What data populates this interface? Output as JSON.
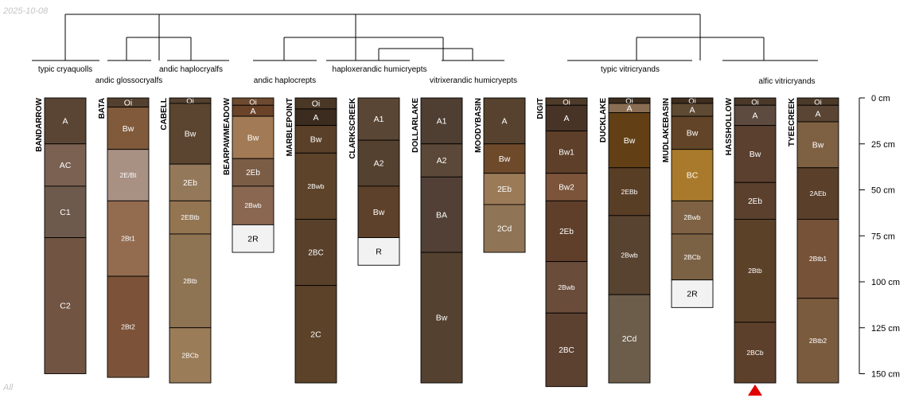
{
  "header": {
    "date": "2025-10-08"
  },
  "footer": {
    "label": "All"
  },
  "depth_axis": {
    "ticks": [
      "0 cm",
      "25 cm",
      "50 cm",
      "75 cm",
      "100 cm",
      "125 cm",
      "150 cm"
    ],
    "values": [
      0,
      25,
      50,
      75,
      100,
      125,
      150
    ]
  },
  "groups": [
    {
      "label": "typic cryaquolls"
    },
    {
      "label": "andic glossocryalfs"
    },
    {
      "label": "andic haplocryalfs"
    },
    {
      "label": "andic haplocrepts"
    },
    {
      "label": "haploxerandic humicryepts"
    },
    {
      "label": "vitrixerandic humicryepts"
    },
    {
      "label": "typic vitricryands"
    },
    {
      "label": "alfic vitricryands"
    }
  ],
  "profiles": [
    {
      "name": "BANDARROW",
      "horizons": [
        {
          "name": "A",
          "top": 0,
          "bottom": 25,
          "color": "#5a4535",
          "text": "#ffffff"
        },
        {
          "name": "AC",
          "top": 25,
          "bottom": 48,
          "color": "#7a6152",
          "text": "#ffffff"
        },
        {
          "name": "C1",
          "top": 48,
          "bottom": 76,
          "color": "#6e5a4c",
          "text": "#ffffff"
        },
        {
          "name": "C2",
          "top": 76,
          "bottom": 150,
          "color": "#725443",
          "text": "#ffffff"
        }
      ]
    },
    {
      "name": "BATA",
      "horizons": [
        {
          "name": "Oi",
          "top": 0,
          "bottom": 5,
          "color": "#54402f",
          "text": "#ffffff"
        },
        {
          "name": "Bw",
          "top": 5,
          "bottom": 28,
          "color": "#805a3b",
          "text": "#ffffff"
        },
        {
          "name": "2E/Bt",
          "top": 28,
          "bottom": 56,
          "color": "#a89083",
          "text": "#ffffff"
        },
        {
          "name": "2Bt1",
          "top": 56,
          "bottom": 97,
          "color": "#936c50",
          "text": "#ffffff"
        },
        {
          "name": "2Bt2",
          "top": 97,
          "bottom": 152,
          "color": "#7c5338",
          "text": "#ffffff"
        }
      ]
    },
    {
      "name": "CABELL",
      "horizons": [
        {
          "name": "Oi",
          "top": 0,
          "bottom": 3,
          "color": "#54402f",
          "text": "#ffffff"
        },
        {
          "name": "Bw",
          "top": 3,
          "bottom": 36,
          "color": "#5b4530",
          "text": "#ffffff"
        },
        {
          "name": "2Eb",
          "top": 36,
          "bottom": 56,
          "color": "#94785a",
          "text": "#ffffff"
        },
        {
          "name": "2EBtb",
          "top": 56,
          "bottom": 74,
          "color": "#937552",
          "text": "#ffffff"
        },
        {
          "name": "2Btb",
          "top": 74,
          "bottom": 125,
          "color": "#8f7454",
          "text": "#ffffff"
        },
        {
          "name": "2BCb",
          "top": 125,
          "bottom": 155,
          "color": "#9a7c58",
          "text": "#ffffff"
        }
      ]
    },
    {
      "name": "BEARPAWMEADOW",
      "horizons": [
        {
          "name": "Oi",
          "top": 0,
          "bottom": 4,
          "color": "#6e4a30",
          "text": "#ffffff"
        },
        {
          "name": "A",
          "top": 4,
          "bottom": 10,
          "color": "#6a4329",
          "text": "#ffffff"
        },
        {
          "name": "Bw",
          "top": 10,
          "bottom": 33,
          "color": "#a27a55",
          "text": "#ffffff"
        },
        {
          "name": "2Eb",
          "top": 33,
          "bottom": 48,
          "color": "#7b5d46",
          "text": "#ffffff"
        },
        {
          "name": "2Bwb",
          "top": 48,
          "bottom": 69,
          "color": "#8a6751",
          "text": "#ffffff"
        },
        {
          "name": "2R",
          "top": 69,
          "bottom": 84,
          "color": "#f2f2f2",
          "text": "#000000"
        }
      ]
    },
    {
      "name": "MARBLEPOINT",
      "horizons": [
        {
          "name": "Oi",
          "top": 0,
          "bottom": 6,
          "color": "#4a3826",
          "text": "#ffffff"
        },
        {
          "name": "A",
          "top": 6,
          "bottom": 15,
          "color": "#3b2c1f",
          "text": "#ffffff"
        },
        {
          "name": "Bw",
          "top": 15,
          "bottom": 30,
          "color": "#5a4028",
          "text": "#ffffff"
        },
        {
          "name": "2Bwb",
          "top": 30,
          "bottom": 66,
          "color": "#5c4329",
          "text": "#ffffff"
        },
        {
          "name": "2BC",
          "top": 66,
          "bottom": 102,
          "color": "#58402b",
          "text": "#ffffff"
        },
        {
          "name": "2C",
          "top": 102,
          "bottom": 155,
          "color": "#5b4228",
          "text": "#ffffff"
        }
      ]
    },
    {
      "name": "CLARKSCREEK",
      "horizons": [
        {
          "name": "A1",
          "top": 0,
          "bottom": 23,
          "color": "#5a4634",
          "text": "#ffffff"
        },
        {
          "name": "A2",
          "top": 23,
          "bottom": 48,
          "color": "#55412f",
          "text": "#ffffff"
        },
        {
          "name": "Bw",
          "top": 48,
          "bottom": 76,
          "color": "#5e412a",
          "text": "#ffffff"
        },
        {
          "name": "R",
          "top": 76,
          "bottom": 91,
          "color": "#f2f2f2",
          "text": "#000000"
        }
      ]
    },
    {
      "name": "DOLLARLAKE",
      "horizons": [
        {
          "name": "A1",
          "top": 0,
          "bottom": 25,
          "color": "#4f3e32",
          "text": "#ffffff"
        },
        {
          "name": "A2",
          "top": 25,
          "bottom": 43,
          "color": "#5b4838",
          "text": "#ffffff"
        },
        {
          "name": "BA",
          "top": 43,
          "bottom": 84,
          "color": "#524036",
          "text": "#ffffff"
        },
        {
          "name": "Bw",
          "top": 84,
          "bottom": 155,
          "color": "#54412f",
          "text": "#ffffff"
        }
      ]
    },
    {
      "name": "MOODYBASIN",
      "horizons": [
        {
          "name": "A",
          "top": 0,
          "bottom": 25,
          "color": "#56422e",
          "text": "#ffffff"
        },
        {
          "name": "Bw",
          "top": 25,
          "bottom": 41,
          "color": "#6e4a2b",
          "text": "#ffffff"
        },
        {
          "name": "2Eb",
          "top": 41,
          "bottom": 58,
          "color": "#9b7a58",
          "text": "#ffffff"
        },
        {
          "name": "2Cd",
          "top": 58,
          "bottom": 84,
          "color": "#907456",
          "text": "#ffffff"
        }
      ]
    },
    {
      "name": "DIGIT",
      "horizons": [
        {
          "name": "Oi",
          "top": 0,
          "bottom": 4,
          "color": "#4e3b29",
          "text": "#ffffff"
        },
        {
          "name": "A",
          "top": 4,
          "bottom": 18,
          "color": "#473427",
          "text": "#ffffff"
        },
        {
          "name": "Bw1",
          "top": 18,
          "bottom": 41,
          "color": "#5d3f2a",
          "text": "#ffffff"
        },
        {
          "name": "Bw2",
          "top": 41,
          "bottom": 56,
          "color": "#7b543a",
          "text": "#ffffff"
        },
        {
          "name": "2Eb",
          "top": 56,
          "bottom": 89,
          "color": "#5f3f2a",
          "text": "#ffffff"
        },
        {
          "name": "2Bwb",
          "top": 89,
          "bottom": 117,
          "color": "#694c39",
          "text": "#ffffff"
        },
        {
          "name": "2BC",
          "top": 117,
          "bottom": 157,
          "color": "#5c4030",
          "text": "#ffffff"
        }
      ]
    },
    {
      "name": "DUCKLAKE",
      "horizons": [
        {
          "name": "Oi",
          "top": 0,
          "bottom": 3,
          "color": "#3c2c1e",
          "text": "#ffffff"
        },
        {
          "name": "A",
          "top": 3,
          "bottom": 8,
          "color": "#8a6e53",
          "text": "#ffffff"
        },
        {
          "name": "Bw",
          "top": 8,
          "bottom": 38,
          "color": "#623f14",
          "text": "#ffffff"
        },
        {
          "name": "2EBb",
          "top": 38,
          "bottom": 64,
          "color": "#593e26",
          "text": "#ffffff"
        },
        {
          "name": "2Bwb",
          "top": 64,
          "bottom": 107,
          "color": "#584330",
          "text": "#ffffff"
        },
        {
          "name": "2Cd",
          "top": 107,
          "bottom": 155,
          "color": "#6b5d4a",
          "text": "#ffffff"
        }
      ]
    },
    {
      "name": "MUDLAKEBASIN",
      "horizons": [
        {
          "name": "Oi",
          "top": 0,
          "bottom": 3,
          "color": "#3f2d1e",
          "text": "#ffffff"
        },
        {
          "name": "A",
          "top": 3,
          "bottom": 10,
          "color": "#5f4a33",
          "text": "#ffffff"
        },
        {
          "name": "Bw",
          "top": 10,
          "bottom": 28,
          "color": "#624528",
          "text": "#ffffff"
        },
        {
          "name": "BC",
          "top": 28,
          "bottom": 56,
          "color": "#aa7a2c",
          "text": "#ffffff"
        },
        {
          "name": "2Bwb",
          "top": 56,
          "bottom": 74,
          "color": "#7e6243",
          "text": "#ffffff"
        },
        {
          "name": "2BCb",
          "top": 74,
          "bottom": 99,
          "color": "#7c6244",
          "text": "#ffffff"
        },
        {
          "name": "2R",
          "top": 99,
          "bottom": 114,
          "color": "#f2f2f2",
          "text": "#000000"
        }
      ]
    },
    {
      "name": "HASSHOLLOW",
      "horizons": [
        {
          "name": "Oi",
          "top": 0,
          "bottom": 4,
          "color": "#4a3929",
          "text": "#ffffff"
        },
        {
          "name": "A",
          "top": 4,
          "bottom": 15,
          "color": "#5e4b3f",
          "text": "#ffffff"
        },
        {
          "name": "Bw",
          "top": 15,
          "bottom": 46,
          "color": "#5b4030",
          "text": "#ffffff"
        },
        {
          "name": "2Eb",
          "top": 46,
          "bottom": 66,
          "color": "#5b402d",
          "text": "#ffffff"
        },
        {
          "name": "2Btb",
          "top": 66,
          "bottom": 122,
          "color": "#5c4129",
          "text": "#ffffff"
        },
        {
          "name": "2BCb",
          "top": 122,
          "bottom": 155,
          "color": "#5d402b",
          "text": "#ffffff"
        }
      ]
    },
    {
      "name": "TYEECREEK",
      "horizons": [
        {
          "name": "Oi",
          "top": 0,
          "bottom": 4,
          "color": "#4c3a28",
          "text": "#ffffff"
        },
        {
          "name": "A",
          "top": 4,
          "bottom": 13,
          "color": "#5a4534",
          "text": "#ffffff"
        },
        {
          "name": "Bw",
          "top": 13,
          "bottom": 38,
          "color": "#7e6042",
          "text": "#ffffff"
        },
        {
          "name": "2AEb",
          "top": 38,
          "bottom": 66,
          "color": "#5a3f2a",
          "text": "#ffffff"
        },
        {
          "name": "2Btb1",
          "top": 66,
          "bottom": 109,
          "color": "#765238",
          "text": "#ffffff"
        },
        {
          "name": "2Btb2",
          "top": 109,
          "bottom": 155,
          "color": "#7b5b3d",
          "text": "#ffffff"
        }
      ]
    }
  ],
  "marker": {
    "profile": "HASSHOLLOW",
    "color": "#e00000"
  }
}
